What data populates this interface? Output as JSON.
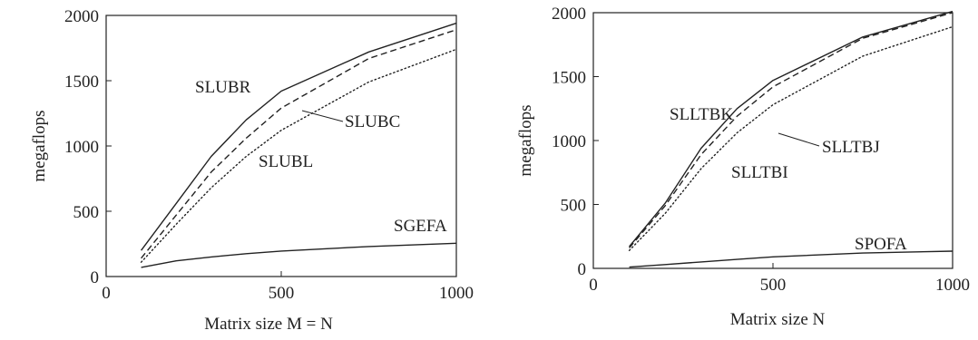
{
  "chart_data": [
    {
      "type": "line",
      "xlabel": "Matrix size M = N",
      "ylabel": "megaflops",
      "xlim": [
        0,
        1000
      ],
      "ylim": [
        0,
        2000
      ],
      "xticks": [
        0,
        500,
        1000
      ],
      "yticks": [
        0,
        500,
        1000,
        1500,
        2000
      ],
      "grid": false,
      "legend": "labels on lines",
      "series": [
        {
          "name": "SLUBR",
          "style": "solid",
          "x": [
            100,
            200,
            300,
            400,
            500,
            750,
            1000
          ],
          "y": [
            200,
            560,
            920,
            1200,
            1420,
            1720,
            1940
          ]
        },
        {
          "name": "SLUBC",
          "style": "dashed",
          "x": [
            100,
            200,
            300,
            400,
            500,
            750,
            1000
          ],
          "y": [
            140,
            470,
            800,
            1060,
            1290,
            1670,
            1890
          ]
        },
        {
          "name": "SLUBL",
          "style": "dotted",
          "x": [
            100,
            200,
            300,
            400,
            500,
            750,
            1000
          ],
          "y": [
            110,
            400,
            680,
            920,
            1120,
            1490,
            1740
          ]
        },
        {
          "name": "SGEFA",
          "style": "solid",
          "x": [
            100,
            200,
            300,
            400,
            500,
            750,
            1000
          ],
          "y": [
            70,
            120,
            150,
            175,
            195,
            230,
            255
          ]
        }
      ]
    },
    {
      "type": "line",
      "xlabel": "Matrix size N",
      "ylabel": "megaflops",
      "xlim": [
        0,
        1000
      ],
      "ylim": [
        0,
        2000
      ],
      "xticks": [
        0,
        500,
        1000
      ],
      "yticks": [
        0,
        500,
        1000,
        1500,
        2000
      ],
      "grid": false,
      "legend": "labels on lines",
      "series": [
        {
          "name": "SLLTBK",
          "style": "solid",
          "x": [
            100,
            200,
            300,
            400,
            500,
            750,
            1000
          ],
          "y": [
            170,
            510,
            940,
            1250,
            1470,
            1810,
            2010
          ]
        },
        {
          "name": "SLLTBJ",
          "style": "dashed",
          "x": [
            100,
            200,
            300,
            400,
            500,
            750,
            1000
          ],
          "y": [
            160,
            490,
            890,
            1190,
            1420,
            1800,
            2000
          ]
        },
        {
          "name": "SLLTBI",
          "style": "dotted",
          "x": [
            100,
            200,
            300,
            400,
            500,
            750,
            1000
          ],
          "y": [
            140,
            430,
            780,
            1060,
            1280,
            1660,
            1890
          ]
        },
        {
          "name": "SPOFA",
          "style": "solid",
          "x": [
            100,
            200,
            300,
            400,
            500,
            750,
            1000
          ],
          "y": [
            10,
            30,
            50,
            70,
            90,
            120,
            135
          ]
        }
      ]
    }
  ]
}
